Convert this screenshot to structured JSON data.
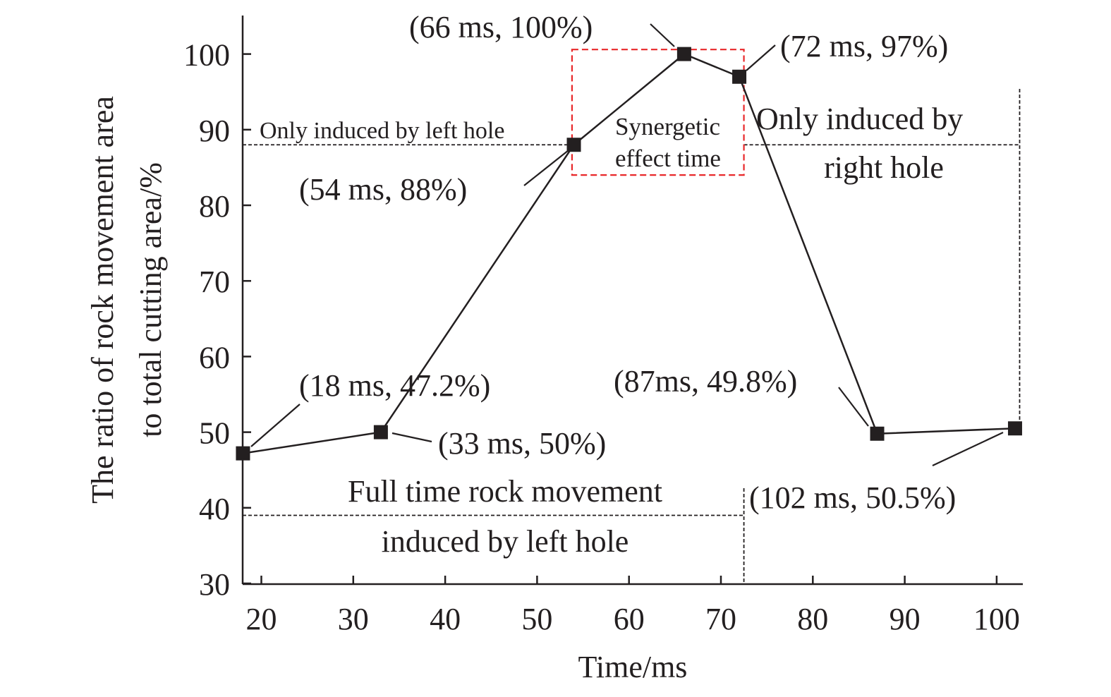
{
  "chart_data": {
    "type": "line",
    "xlabel": "Time/ms",
    "ylabel_lines": [
      "The ratio of rock movement area",
      "to total cutting area/%"
    ],
    "xlim": [
      18,
      103.5
    ],
    "ylim": [
      30,
      105
    ],
    "xticks": [
      20,
      30,
      40,
      50,
      60,
      70,
      80,
      90,
      100
    ],
    "yticks": [
      30,
      40,
      50,
      60,
      70,
      80,
      90,
      100
    ],
    "grid": false,
    "series": [
      {
        "x": [
          18,
          33,
          54,
          66,
          72,
          87,
          102
        ],
        "y": [
          47.2,
          50,
          88,
          100,
          97,
          49.8,
          50.5
        ]
      }
    ],
    "point_labels": [
      {
        "text": "(18 ms, 47.2%)",
        "x": 18,
        "y": 47.2
      },
      {
        "text": "(33 ms, 50%)",
        "x": 33,
        "y": 50
      },
      {
        "text": "(54 ms, 88%)",
        "x": 54,
        "y": 88
      },
      {
        "text": "(66 ms, 100%)",
        "x": 66,
        "y": 100
      },
      {
        "text": "(72 ms, 97%)",
        "x": 72,
        "y": 97
      },
      {
        "text": "(87ms, 49.8%)",
        "x": 87,
        "y": 49.8
      },
      {
        "text": "(102 ms, 50.5%)",
        "x": 102,
        "y": 50.5
      }
    ],
    "annotations": {
      "left_hole_only": "Only induced by left hole",
      "synergetic_lines": [
        "Synergetic",
        "effect time"
      ],
      "right_hole_only_lines": [
        "Only induced by",
        "right hole"
      ],
      "full_time_lines": [
        "Full time rock movement",
        "induced by left hole"
      ]
    },
    "reference_lines": {
      "left_hole_y": 88,
      "left_hole_x_end": 54,
      "right_hole_y": 88,
      "right_hole_x_start": 72.5,
      "right_hole_x_end": 102.5,
      "full_time_y": 39,
      "full_time_x_end": 72.5,
      "divider_x": 72.5,
      "right_vertical_x": 102.5
    },
    "synergetic_box": {
      "x0": 53.8,
      "x1": 72.5,
      "y0": 84,
      "y1": 100.6,
      "color": "#e8282a"
    },
    "colors": {
      "line": "#231f20",
      "marker": "#231f20",
      "box": "#e8282a"
    }
  }
}
